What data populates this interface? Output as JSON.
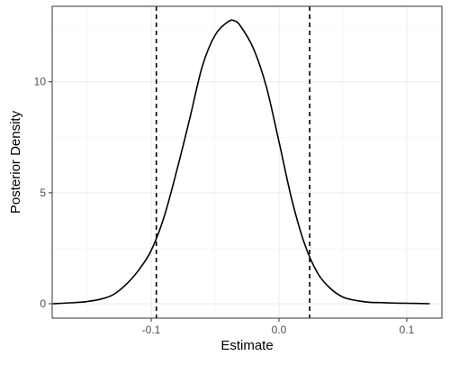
{
  "chart_data": {
    "type": "line",
    "title": "",
    "xlabel": "Estimate",
    "ylabel": "Posterior Density",
    "xlim": [
      -0.1775,
      0.1275
    ],
    "ylim": [
      -0.65,
      13.4
    ],
    "grid": true,
    "x_ticks": [
      {
        "value": -0.1,
        "label": "-0.1"
      },
      {
        "value": 0.0,
        "label": "0.0"
      },
      {
        "value": 0.1,
        "label": "0.1"
      }
    ],
    "y_ticks": [
      {
        "value": 0,
        "label": "0"
      },
      {
        "value": 5,
        "label": "5"
      },
      {
        "value": 10,
        "label": "10"
      }
    ],
    "series": [
      {
        "x": [
          -0.177,
          -0.16,
          -0.15,
          -0.14,
          -0.13,
          -0.12,
          -0.11,
          -0.1,
          -0.09,
          -0.08,
          -0.07,
          -0.06,
          -0.05,
          -0.04,
          -0.035,
          -0.03,
          -0.02,
          -0.01,
          0.0,
          0.01,
          0.02,
          0.03,
          0.04,
          0.05,
          0.06,
          0.07,
          0.08,
          0.09,
          0.1,
          0.118
        ],
        "y": [
          0.0,
          0.05,
          0.1,
          0.2,
          0.4,
          0.85,
          1.5,
          2.4,
          3.9,
          6.0,
          8.3,
          10.7,
          12.1,
          12.7,
          12.75,
          12.5,
          11.5,
          9.8,
          7.3,
          4.7,
          2.7,
          1.4,
          0.7,
          0.3,
          0.15,
          0.07,
          0.05,
          0.03,
          0.02,
          0.0
        ],
        "color": "#000000"
      }
    ],
    "reference_lines": [
      {
        "x": -0.096,
        "style": "dashed",
        "color": "#000000"
      },
      {
        "x": 0.024,
        "style": "dashed",
        "color": "#000000"
      }
    ]
  }
}
